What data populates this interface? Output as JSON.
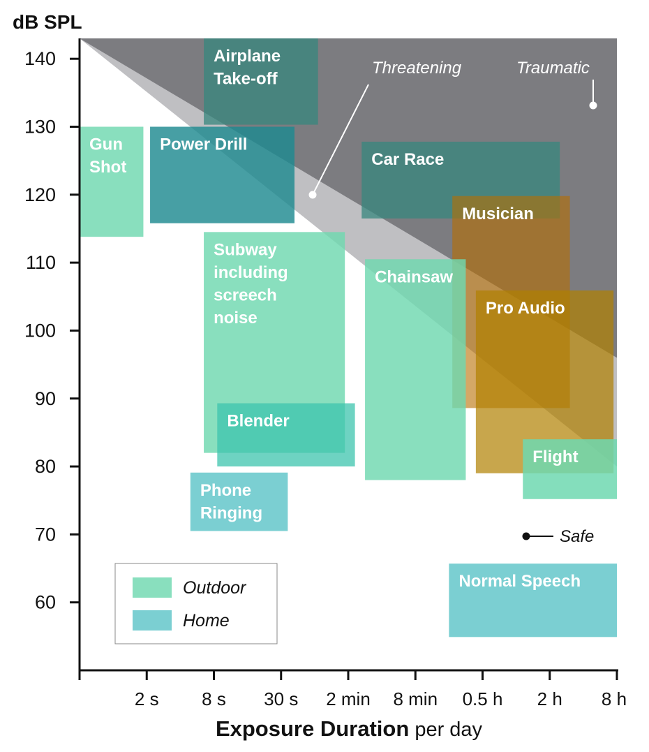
{
  "chart_data": {
    "type": "range-box",
    "ylabel": "dB SPL",
    "xlabel_bold": "Exposure Duration",
    "xlabel_rest": "per day",
    "ylim": [
      50,
      143
    ],
    "yticks": [
      60,
      70,
      80,
      90,
      100,
      110,
      120,
      130,
      140
    ],
    "xticks": [
      "2 s",
      "8 s",
      "30 s",
      "2 min",
      "8 min",
      "0.5 h",
      "2 h",
      "8 h"
    ],
    "zones": {
      "threatening": {
        "label": "Threatening",
        "color": "#bfbfc2",
        "boundary_start_db": 143,
        "boundary_end_db": 80
      },
      "traumatic": {
        "label": "Traumatic",
        "color": "#7c7c80",
        "boundary_start_db": 143,
        "boundary_end_db": 96
      },
      "safe": {
        "label": "Safe"
      }
    },
    "legend": [
      {
        "label": "Outdoor",
        "color": "#6fd8b0"
      },
      {
        "label": "Home",
        "color": "#5ec4c8"
      }
    ],
    "series": [
      {
        "name": "Airplane Take-off",
        "lines": [
          "Airplane",
          "Take-off"
        ],
        "color": "#37877e",
        "opacity": 0.75,
        "x_from": 1.85,
        "x_to": 3.55,
        "db_min": 130.3,
        "db_max": 143
      },
      {
        "name": "Gun Shot",
        "lines": [
          "Gun",
          "Shot"
        ],
        "color": "#6fd8b0",
        "opacity": 0.82,
        "x_from": 0.0,
        "x_to": 0.95,
        "db_min": 113.8,
        "db_max": 130
      },
      {
        "name": "Power Drill",
        "lines": [
          "Power Drill"
        ],
        "color": "#1e8a90",
        "opacity": 0.82,
        "x_from": 1.05,
        "x_to": 3.2,
        "db_min": 115.8,
        "db_max": 130
      },
      {
        "name": "Car Race",
        "lines": [
          "Car Race"
        ],
        "color": "#37877e",
        "opacity": 0.75,
        "x_from": 4.2,
        "x_to": 7.15,
        "db_min": 116.5,
        "db_max": 127.8
      },
      {
        "name": "Musician",
        "lines": [
          "Musician"
        ],
        "color": "#b86e00",
        "opacity": 0.6,
        "x_from": 5.55,
        "x_to": 7.3,
        "db_min": 88.6,
        "db_max": 119.8
      },
      {
        "name": "Subway including screech noise",
        "lines": [
          "Subway",
          "including",
          "screech",
          "noise"
        ],
        "color": "#6fd8b0",
        "opacity": 0.82,
        "x_from": 1.85,
        "x_to": 3.95,
        "db_min": 82,
        "db_max": 114.5
      },
      {
        "name": "Chainsaw",
        "lines": [
          "Chainsaw"
        ],
        "color": "#6fd8b0",
        "opacity": 0.82,
        "x_from": 4.25,
        "x_to": 5.75,
        "db_min": 78,
        "db_max": 110.5
      },
      {
        "name": "Pro Audio",
        "lines": [
          "Pro Audio"
        ],
        "color": "#b08000",
        "opacity": 0.7,
        "x_from": 5.9,
        "x_to": 7.95,
        "db_min": 79,
        "db_max": 105.9
      },
      {
        "name": "Blender",
        "lines": [
          "Blender"
        ],
        "color": "#3ec4ad",
        "opacity": 0.75,
        "x_from": 2.05,
        "x_to": 4.1,
        "db_min": 80,
        "db_max": 89.3
      },
      {
        "name": "Flight",
        "lines": [
          "Flight"
        ],
        "color": "#6fd8b0",
        "opacity": 0.85,
        "x_from": 6.6,
        "x_to": 8.0,
        "db_min": 75.2,
        "db_max": 84
      },
      {
        "name": "Phone Ringing",
        "lines": [
          "Phone",
          "Ringing"
        ],
        "color": "#5ec4c8",
        "opacity": 0.82,
        "x_from": 1.65,
        "x_to": 3.1,
        "db_min": 70.5,
        "db_max": 79.1
      },
      {
        "name": "Normal Speech",
        "lines": [
          "Normal Speech"
        ],
        "color": "#5ec4c8",
        "opacity": 0.82,
        "x_from": 5.5,
        "x_to": 8.0,
        "db_min": 54.9,
        "db_max": 65.7
      }
    ]
  }
}
